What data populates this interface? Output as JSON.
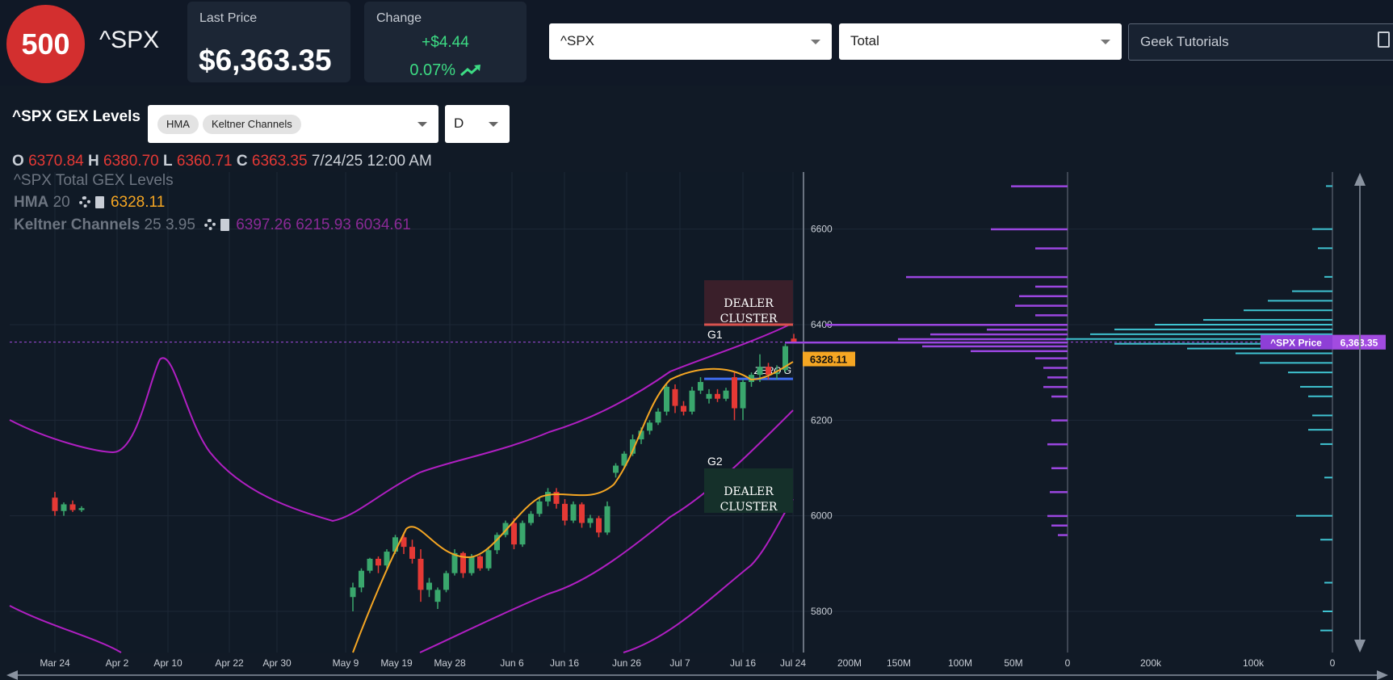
{
  "header": {
    "badge": "500",
    "ticker": "^SPX",
    "last_price_label": "Last Price",
    "last_price": "$6,363.35",
    "change_label": "Change",
    "change_abs": "+$4.44",
    "change_pct": "0.07%",
    "ticker_select": "^SPX",
    "gex_select": "Total",
    "tutorials": "Geek Tutorials",
    "up_color": "#3ddc84"
  },
  "panel": {
    "title": "^SPX GEX Levels",
    "indicators": [
      "HMA",
      "Keltner Channels"
    ],
    "timeframe": "D"
  },
  "ohlc": {
    "o_label": "O",
    "o": "6370.84",
    "h_label": "H",
    "h": "6380.70",
    "l_label": "L",
    "l": "6360.71",
    "c_label": "C",
    "c": "6363.35",
    "date": "7/24/25 12:00 AM"
  },
  "legend": {
    "series": "^SPX Total GEX Levels",
    "hma_name": "HMA",
    "hma_params": "20",
    "hma_value": "6328.11",
    "kc_name": "Keltner Channels",
    "kc_params": "25 3.95",
    "kc_values": "6397.26 6215.93 6034.61"
  },
  "chart_data": {
    "type": "candlestick",
    "x_ticks": [
      "Mar 24",
      "Apr 2",
      "Apr 10",
      "Apr 22",
      "Apr 30",
      "May 9",
      "May 19",
      "May 28",
      "Jun 6",
      "Jun 16",
      "Jun 26",
      "Jul 7",
      "Jul 16",
      "Jul 24"
    ],
    "y_ticks": [
      5800,
      6000,
      6200,
      6400,
      6600
    ],
    "ylim": [
      5720,
      6720
    ],
    "current_price": 6363.35,
    "hma_value": 6328.11,
    "hma_label": "6328.11",
    "zero_gamma": 6290,
    "zero_gamma_label": "ZERO G",
    "g1_label": "G1",
    "g1": 6400,
    "g2_label": "G2",
    "dealer_cluster_label": [
      "DEALER",
      "CLUSTER"
    ],
    "colors": {
      "up": "#3aa76d",
      "down": "#e53935",
      "hma": "#f5a623",
      "keltner": "#b01fc2",
      "gex": "#9b46e0",
      "volume": "#3fc3d1"
    },
    "candles": [
      {
        "o": 6038,
        "h": 6050,
        "l": 6000,
        "c": 6010
      },
      {
        "o": 6010,
        "h": 6028,
        "l": 6000,
        "c": 6024
      },
      {
        "o": 6024,
        "h": 6032,
        "l": 6008,
        "c": 6012
      },
      {
        "o": 6012,
        "h": 6020,
        "l": 6008,
        "c": 6016
      },
      {
        "o": 5830,
        "h": 5860,
        "l": 5800,
        "c": 5850
      },
      {
        "o": 5850,
        "h": 5890,
        "l": 5840,
        "c": 5885
      },
      {
        "o": 5885,
        "h": 5912,
        "l": 5880,
        "c": 5910
      },
      {
        "o": 5910,
        "h": 5915,
        "l": 5880,
        "c": 5896
      },
      {
        "o": 5896,
        "h": 5930,
        "l": 5890,
        "c": 5925
      },
      {
        "o": 5925,
        "h": 5960,
        "l": 5920,
        "c": 5955
      },
      {
        "o": 5955,
        "h": 5965,
        "l": 5920,
        "c": 5935
      },
      {
        "o": 5935,
        "h": 5950,
        "l": 5900,
        "c": 5910
      },
      {
        "o": 5910,
        "h": 5930,
        "l": 5820,
        "c": 5845
      },
      {
        "o": 5845,
        "h": 5870,
        "l": 5830,
        "c": 5860
      },
      {
        "o": 5820,
        "h": 5850,
        "l": 5805,
        "c": 5845
      },
      {
        "o": 5845,
        "h": 5885,
        "l": 5840,
        "c": 5880
      },
      {
        "o": 5880,
        "h": 5930,
        "l": 5875,
        "c": 5922
      },
      {
        "o": 5922,
        "h": 5925,
        "l": 5870,
        "c": 5880
      },
      {
        "o": 5880,
        "h": 5920,
        "l": 5875,
        "c": 5915
      },
      {
        "o": 5915,
        "h": 5918,
        "l": 5885,
        "c": 5890
      },
      {
        "o": 5890,
        "h": 5935,
        "l": 5885,
        "c": 5928
      },
      {
        "o": 5928,
        "h": 5965,
        "l": 5920,
        "c": 5960
      },
      {
        "o": 5960,
        "h": 5990,
        "l": 5955,
        "c": 5985
      },
      {
        "o": 5985,
        "h": 5995,
        "l": 5930,
        "c": 5940
      },
      {
        "o": 5940,
        "h": 5990,
        "l": 5935,
        "c": 5985
      },
      {
        "o": 5985,
        "h": 6010,
        "l": 5980,
        "c": 6004
      },
      {
        "o": 6004,
        "h": 6040,
        "l": 5998,
        "c": 6030
      },
      {
        "o": 6030,
        "h": 6058,
        "l": 6020,
        "c": 6050
      },
      {
        "o": 6050,
        "h": 6058,
        "l": 6015,
        "c": 6025
      },
      {
        "o": 6025,
        "h": 6035,
        "l": 5980,
        "c": 5990
      },
      {
        "o": 5990,
        "h": 6030,
        "l": 5985,
        "c": 6024
      },
      {
        "o": 6024,
        "h": 6028,
        "l": 5975,
        "c": 5985
      },
      {
        "o": 5985,
        "h": 6002,
        "l": 5975,
        "c": 5995
      },
      {
        "o": 5995,
        "h": 6000,
        "l": 5955,
        "c": 5965
      },
      {
        "o": 5965,
        "h": 6030,
        "l": 5960,
        "c": 6020
      },
      {
        "o": 6090,
        "h": 6110,
        "l": 6080,
        "c": 6105
      },
      {
        "o": 6105,
        "h": 6135,
        "l": 6100,
        "c": 6130
      },
      {
        "o": 6130,
        "h": 6170,
        "l": 6125,
        "c": 6160
      },
      {
        "o": 6160,
        "h": 6185,
        "l": 6150,
        "c": 6178
      },
      {
        "o": 6178,
        "h": 6200,
        "l": 6170,
        "c": 6195
      },
      {
        "o": 6195,
        "h": 6225,
        "l": 6190,
        "c": 6218
      },
      {
        "o": 6218,
        "h": 6275,
        "l": 6210,
        "c": 6270
      },
      {
        "o": 6265,
        "h": 6275,
        "l": 6215,
        "c": 6230
      },
      {
        "o": 6230,
        "h": 6240,
        "l": 6210,
        "c": 6218
      },
      {
        "o": 6218,
        "h": 6270,
        "l": 6212,
        "c": 6262
      },
      {
        "o": 6262,
        "h": 6290,
        "l": 6255,
        "c": 6280
      },
      {
        "o": 6245,
        "h": 6265,
        "l": 6235,
        "c": 6255
      },
      {
        "o": 6255,
        "h": 6265,
        "l": 6238,
        "c": 6245
      },
      {
        "o": 6245,
        "h": 6268,
        "l": 6240,
        "c": 6262
      },
      {
        "o": 6290,
        "h": 6300,
        "l": 6200,
        "c": 6225
      },
      {
        "o": 6225,
        "h": 6285,
        "l": 6200,
        "c": 6280
      },
      {
        "o": 6280,
        "h": 6300,
        "l": 6270,
        "c": 6295
      },
      {
        "o": 6295,
        "h": 6338,
        "l": 6280,
        "c": 6312
      },
      {
        "o": 6312,
        "h": 6320,
        "l": 6285,
        "c": 6295
      },
      {
        "o": 6300,
        "h": 6315,
        "l": 6285,
        "c": 6300
      },
      {
        "o": 6305,
        "h": 6360,
        "l": 6300,
        "c": 6355
      },
      {
        "o": 6370.84,
        "h": 6380.7,
        "l": 6360.71,
        "c": 6363.35
      }
    ],
    "gex_x_ticks": [
      "200M",
      "150M",
      "100M",
      "50M",
      "0"
    ],
    "vol_x_ticks": [
      "200k",
      "100k",
      "0"
    ],
    "price_tag_label": "^SPX Price",
    "price_tag_value": "6,363.35"
  }
}
